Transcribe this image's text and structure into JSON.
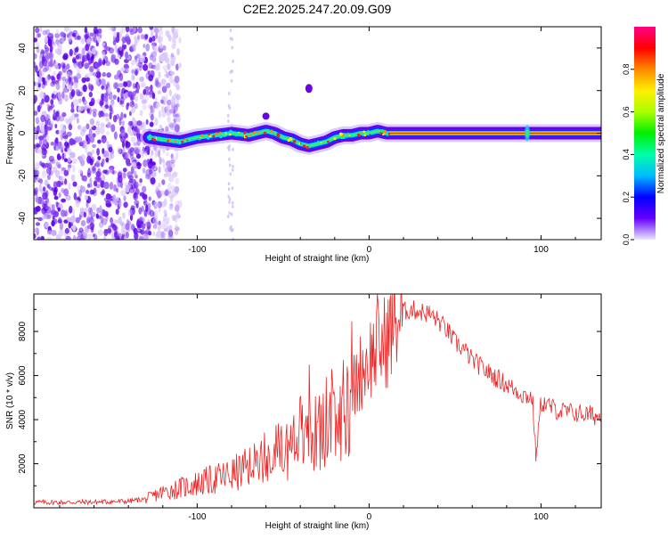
{
  "title": "C2E2.2025.247.20.09.G09",
  "colors": {
    "snr_line": "#ee2222",
    "track_core": "#ee2222",
    "axis": "#000000",
    "scatter": "#6a00ee"
  },
  "chart_data": [
    {
      "type": "heatmap",
      "name": "spectrogram",
      "xlabel": "Height of straight line (km)",
      "ylabel": "Frequency (Hz)",
      "xlim": [
        -195,
        135
      ],
      "ylim": [
        -50,
        50
      ],
      "xticks": [
        -100,
        0,
        100
      ],
      "yticks": [
        -40,
        -20,
        0,
        20,
        40
      ],
      "xtick_labels": [
        "-100",
        "0",
        "100"
      ],
      "ytick_labels": [
        "-40",
        "-20",
        "0",
        "20",
        "40"
      ],
      "colorbar": {
        "label": "Normalized spectral amplitude",
        "range": [
          0,
          1
        ],
        "ticks": [
          0.0,
          0.2,
          0.4,
          0.6,
          0.8
        ],
        "tick_labels": [
          "0.0",
          "0.2",
          "0.4",
          "0.6",
          "0.8"
        ],
        "colormap": [
          "#e8e8ff",
          "#6600ff",
          "#0000ff",
          "#00bbff",
          "#00ffaa",
          "#00ee00",
          "#aaff00",
          "#ffee00",
          "#ff8800",
          "#ff0000",
          "#ff0088"
        ]
      },
      "track": {
        "description_values": "frequency (Hz) of the dominant signal vs height (km)",
        "x": [
          -128,
          -120,
          -110,
          -100,
          -90,
          -80,
          -70,
          -60,
          -55,
          -50,
          -45,
          -40,
          -35,
          -30,
          -25,
          -20,
          -15,
          -10,
          -5,
          0,
          5,
          10,
          20,
          40,
          60,
          80,
          92,
          100,
          120,
          135
        ],
        "y": [
          -2,
          -3,
          -4,
          -2,
          -1,
          0,
          -1,
          1,
          0,
          -2,
          -3,
          -5,
          -6,
          -5,
          -4,
          -2,
          -1,
          -1,
          0,
          0,
          1,
          0,
          0,
          0,
          0,
          0,
          0,
          0,
          0,
          0
        ]
      },
      "noise_region_x": [
        -195,
        -125
      ],
      "outlier_blob": {
        "x": -35,
        "y": 21
      }
    },
    {
      "type": "line",
      "name": "snr",
      "xlabel": "Height of straight line (km)",
      "ylabel": "SNR (10 * v/v)",
      "xlim": [
        -195,
        135
      ],
      "ylim": [
        0,
        9700
      ],
      "xticks": [
        -100,
        0,
        100
      ],
      "yticks": [
        2000,
        4000,
        6000,
        8000
      ],
      "xtick_labels": [
        "-100",
        "0",
        "100"
      ],
      "ytick_labels": [
        "2000",
        "4000",
        "6000",
        "8000"
      ],
      "series": [
        {
          "name": "SNR",
          "x": [
            -195,
            -180,
            -160,
            -140,
            -130,
            -120,
            -110,
            -100,
            -90,
            -80,
            -70,
            -60,
            -50,
            -40,
            -35,
            -30,
            -25,
            -20,
            -15,
            -10,
            -5,
            0,
            5,
            10,
            15,
            20,
            25,
            30,
            35,
            40,
            45,
            50,
            55,
            60,
            70,
            80,
            90,
            95,
            97,
            100,
            110,
            120,
            130,
            135
          ],
          "y": [
            250,
            250,
            260,
            300,
            400,
            700,
            900,
            1100,
            1300,
            1500,
            1800,
            2200,
            2600,
            3000,
            3300,
            3300,
            3500,
            3600,
            4000,
            5200,
            6200,
            6800,
            7200,
            7600,
            8400,
            8900,
            9000,
            8900,
            8800,
            8500,
            8100,
            7500,
            7200,
            6700,
            6100,
            5600,
            5100,
            5000,
            2300,
            4800,
            4400,
            4300,
            4200,
            4100
          ],
          "spikes": [
            {
              "x": -35,
              "y": 6500
            },
            {
              "x": -30,
              "y": 3900
            },
            {
              "x": -15,
              "y": 6700
            },
            {
              "x": 5,
              "y": 9700
            },
            {
              "x": 97,
              "y": 8200
            },
            {
              "x": 97,
              "y": 2100
            }
          ]
        }
      ]
    }
  ]
}
